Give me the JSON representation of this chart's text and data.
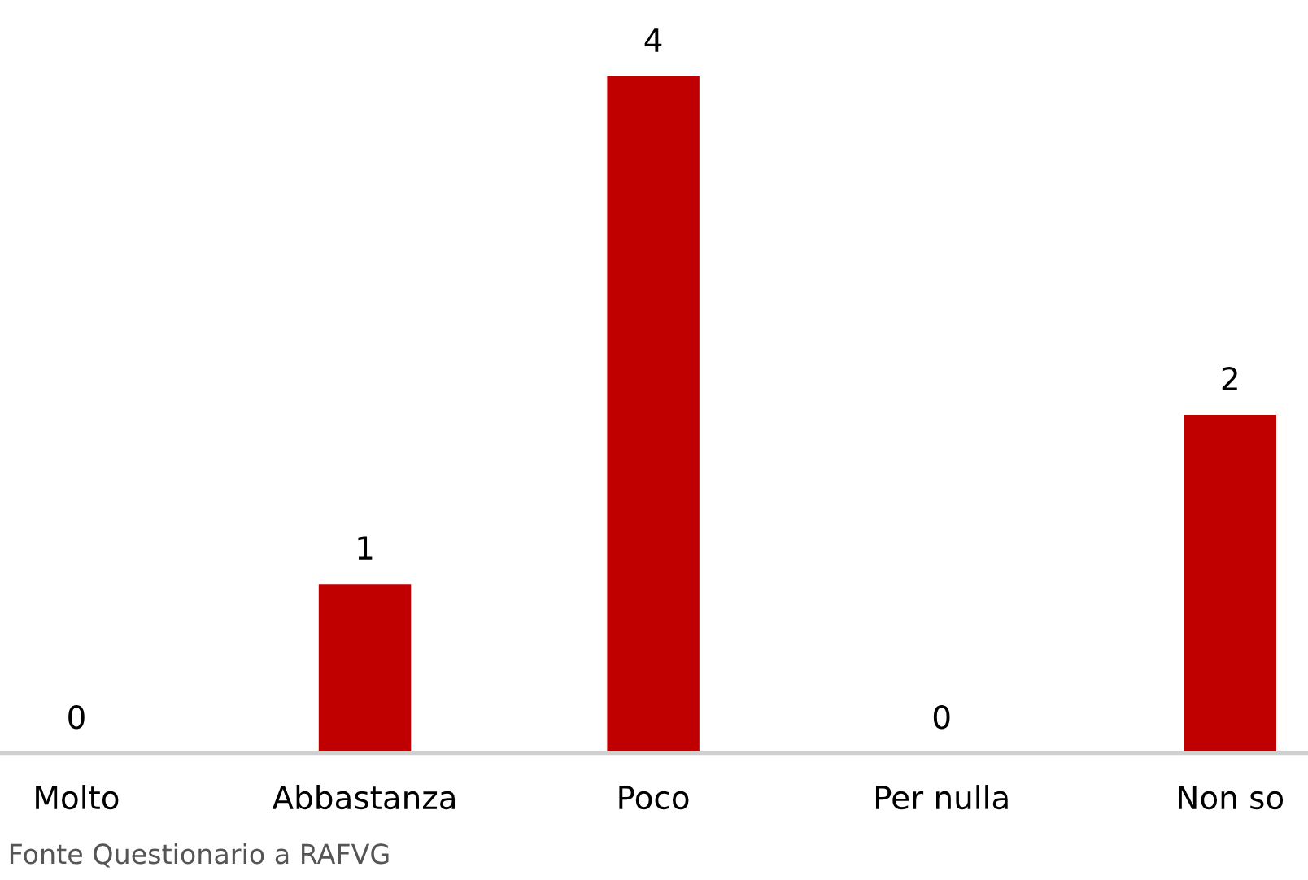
{
  "chart_data": {
    "type": "bar",
    "categories": [
      "Molto",
      "Abbastanza",
      "Poco",
      "Per nulla",
      "Non so"
    ],
    "values": [
      0,
      1,
      4,
      0,
      2
    ],
    "color": "#c00000",
    "data_labels": true,
    "grid": false,
    "legend": false,
    "annotations": [
      "Fonte Questionario a RAFVG"
    ]
  }
}
